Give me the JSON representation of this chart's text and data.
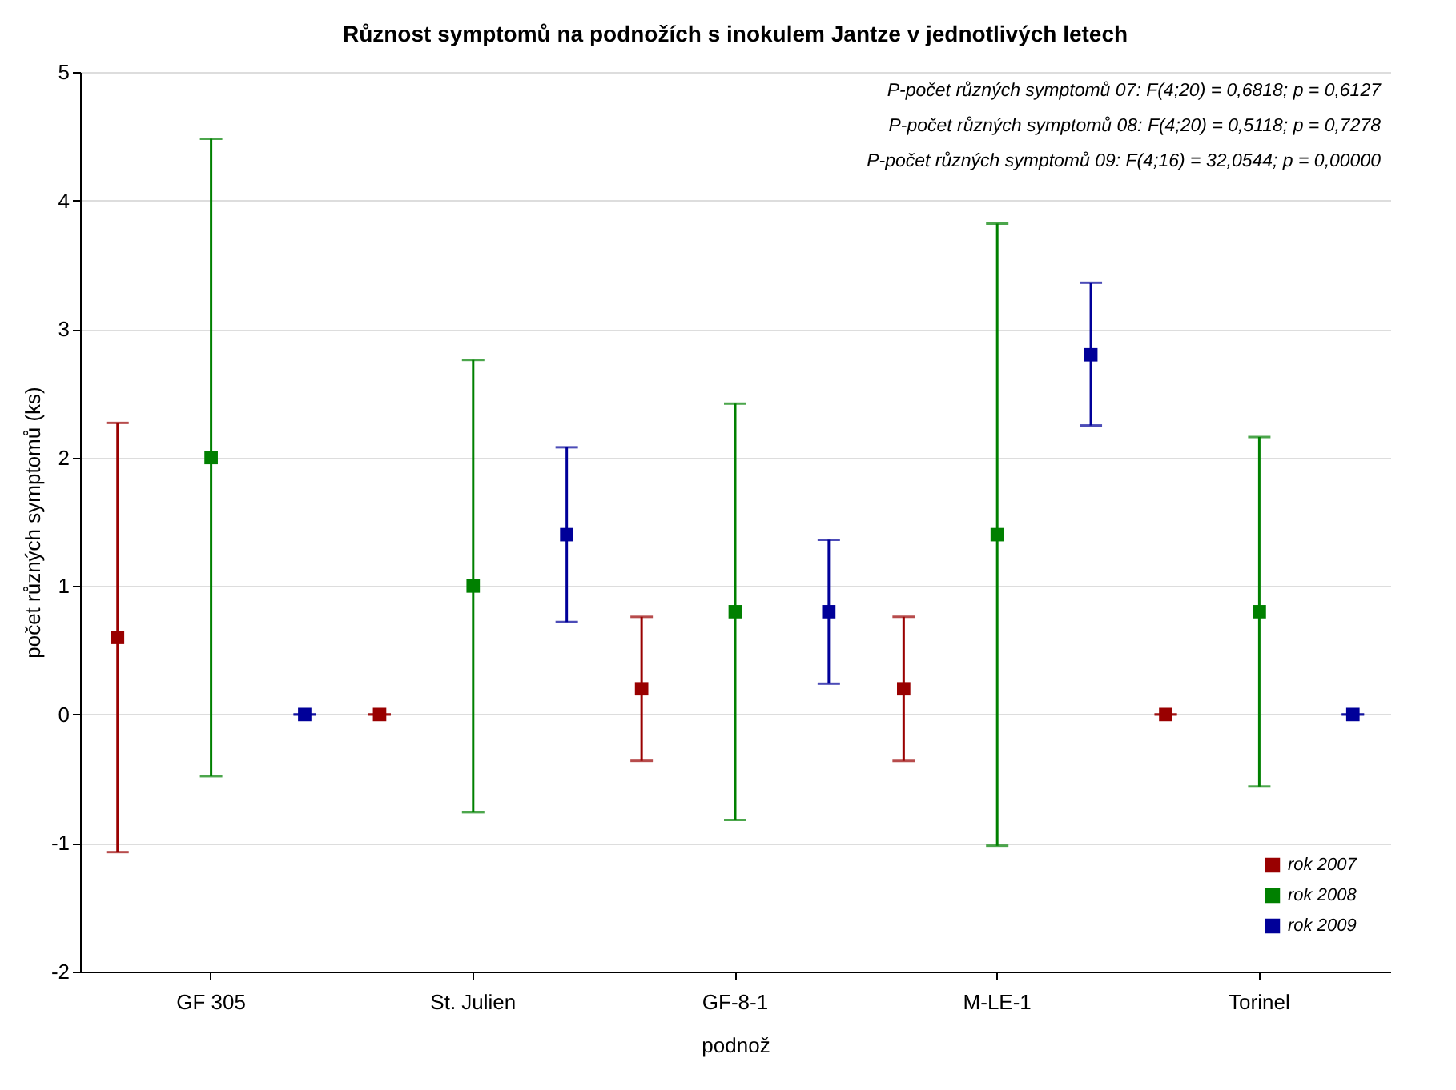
{
  "chart_data": {
    "type": "scatter",
    "title": "Různost symptomů na podnožích s inokulem Jantze v jednotlivých letech",
    "xlabel": "podnož",
    "ylabel": "počet různých symptomů (ks)",
    "categories": [
      "GF 305",
      "St. Julien",
      "GF-8-1",
      "M-LE-1",
      "Torinel"
    ],
    "series": [
      {
        "name": "rok 2007",
        "color": "#990000",
        "values": [
          0.6,
          0,
          0.2,
          0.2,
          0
        ],
        "errors": [
          [
            -1.07,
            2.27
          ],
          [
            0,
            0
          ],
          [
            -0.36,
            0.76
          ],
          [
            -0.36,
            0.76
          ],
          [
            0,
            0
          ]
        ]
      },
      {
        "name": "rok 2008",
        "color": "#008000",
        "values": [
          2.0,
          1.0,
          0.8,
          1.4,
          0.8
        ],
        "errors": [
          [
            -0.48,
            4.48
          ],
          [
            -0.76,
            2.76
          ],
          [
            -0.82,
            2.42
          ],
          [
            -1.02,
            3.82
          ],
          [
            -0.56,
            2.16
          ]
        ]
      },
      {
        "name": "rok 2009",
        "color": "#000099",
        "values": [
          0,
          1.4,
          0.8,
          2.8,
          0
        ],
        "errors": [
          [
            0,
            0
          ],
          [
            0.72,
            2.08
          ],
          [
            0.24,
            1.36
          ],
          [
            2.25,
            3.36
          ],
          [
            0,
            0
          ]
        ]
      }
    ],
    "ylim": [
      -2,
      5
    ],
    "yticks": [
      -2,
      -1,
      0,
      1,
      2,
      3,
      4,
      5
    ],
    "grid": "y",
    "legend": "bottom right",
    "marker": "square",
    "annotations": [
      "P-počet různých symptomů 07:  F(4;20) = 0,6818; p = 0,6127",
      "P-počet různých symptomů 08:  F(4;20) = 0,5118; p = 0,7278",
      "P-počet různých symptomů 09:  F(4;16) = 32,0544; p = 0,00000"
    ]
  }
}
